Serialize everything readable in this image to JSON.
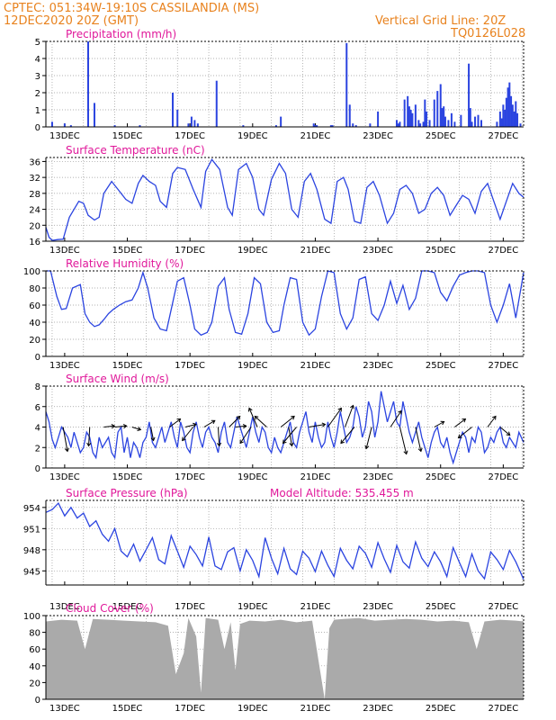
{
  "header": {
    "line1": "CPTEC:   051:34W-19:10S   CASSILANDIA (MS)",
    "line2": "12DEC2020 20Z (GMT)",
    "vgrid": "Vertical Grid Line: 20Z",
    "code": "TQ0126L028"
  },
  "colors": {
    "header": "#e8821e",
    "title": "#e0189a",
    "series": "#2b44e0",
    "cloud": "#aaaaaa",
    "wind": "#000000"
  },
  "chart_data": [
    {
      "type": "bar",
      "title": "Precipitation (mm/h)",
      "xlim": [
        0,
        15.25
      ],
      "ylim": [
        0,
        5
      ],
      "yticks": [
        "0",
        "1",
        "2",
        "3",
        "4",
        "5"
      ],
      "xticks": [
        "13DEC",
        "15DEC",
        "17DEC",
        "19DEC",
        "21DEC",
        "23DEC",
        "25DEC",
        "27DEC"
      ],
      "x": [
        0.2,
        0.6,
        0.8,
        1.35,
        1.55,
        2.2,
        3.0,
        4.05,
        4.2,
        4.55,
        4.65,
        4.75,
        4.85,
        5.45,
        6.3,
        7.35,
        7.5,
        8.55,
        8.6,
        8.65,
        9.1,
        9.15,
        9.6,
        9.7,
        9.8,
        9.9,
        10.35,
        10.6,
        11.2,
        11.25,
        11.3,
        11.45,
        11.55,
        11.6,
        11.65,
        11.7,
        11.8,
        11.9,
        11.95,
        12.05,
        12.1,
        12.15,
        12.25,
        12.4,
        12.5,
        12.6,
        12.65,
        12.7,
        12.75,
        12.85,
        12.95,
        13.05,
        13.25,
        13.5,
        13.55,
        13.6,
        13.7,
        13.8,
        13.9,
        14.4,
        14.5,
        14.55,
        14.6,
        14.65,
        14.7,
        14.75,
        14.8,
        14.85,
        14.9,
        14.95,
        15.0,
        15.05,
        15.15
      ],
      "values": [
        0.3,
        0.2,
        0.1,
        5.0,
        1.4,
        0.1,
        0.1,
        2.0,
        1.0,
        0.2,
        0.6,
        0.4,
        0.2,
        2.7,
        0.1,
        0.1,
        0.6,
        0.2,
        0.1,
        0.1,
        0.1,
        0.1,
        4.9,
        1.3,
        0.2,
        0.1,
        0.2,
        0.9,
        0.4,
        0.2,
        0.3,
        1.6,
        1.8,
        1.2,
        1.0,
        0.8,
        1.3,
        0.4,
        0.2,
        0.3,
        1.6,
        0.9,
        0.4,
        1.6,
        2.1,
        2.5,
        1.1,
        1.2,
        0.6,
        0.4,
        0.8,
        0.3,
        0.7,
        3.7,
        1.1,
        0.3,
        0.6,
        0.7,
        0.4,
        0.3,
        0.9,
        0.5,
        1.3,
        1.0,
        1.7,
        2.3,
        2.6,
        1.8,
        1.3,
        0.9,
        1.5,
        0.8,
        0.2
      ]
    },
    {
      "type": "line",
      "title": "Surface Temperature (nC)",
      "xlim": [
        0,
        15.25
      ],
      "ylim": [
        16,
        37
      ],
      "yticks": [
        "16",
        "20",
        "24",
        "28",
        "32",
        "36"
      ],
      "xticks": [
        "13DEC",
        "15DEC",
        "17DEC",
        "19DEC",
        "21DEC",
        "23DEC",
        "25DEC",
        "27DEC"
      ],
      "x": [
        0.0,
        0.1,
        0.2,
        0.38,
        0.55,
        0.75,
        0.9,
        1.05,
        1.2,
        1.35,
        1.55,
        1.7,
        1.85,
        2.1,
        2.3,
        2.55,
        2.75,
        2.95,
        3.1,
        3.3,
        3.5,
        3.65,
        3.85,
        4.05,
        4.2,
        4.45,
        4.7,
        4.95,
        5.1,
        5.3,
        5.55,
        5.8,
        5.95,
        6.15,
        6.4,
        6.6,
        6.8,
        6.95,
        7.2,
        7.45,
        7.65,
        7.85,
        8.05,
        8.25,
        8.45,
        8.65,
        8.9,
        9.1,
        9.3,
        9.5,
        9.65,
        9.85,
        10.05,
        10.25,
        10.45,
        10.65,
        10.9,
        11.1,
        11.3,
        11.5,
        11.7,
        11.9,
        12.1,
        12.3,
        12.5,
        12.7,
        12.9,
        13.1,
        13.3,
        13.5,
        13.7,
        13.9,
        14.1,
        14.3,
        14.5,
        14.7,
        14.9,
        15.1,
        15.25
      ],
      "values": [
        19.5,
        17.0,
        16.2,
        16.4,
        16.5,
        22.0,
        24.0,
        26.0,
        25.5,
        22.5,
        21.3,
        22.0,
        28.0,
        31.0,
        29.0,
        26.5,
        25.5,
        30.5,
        32.5,
        31.0,
        30.0,
        26.0,
        24.5,
        33.0,
        34.5,
        34.0,
        29.0,
        24.5,
        33.5,
        36.5,
        34.0,
        24.5,
        22.5,
        34.0,
        35.5,
        32.0,
        24.0,
        22.5,
        31.5,
        35.5,
        33.0,
        24.0,
        22.0,
        31.0,
        33.0,
        29.0,
        21.5,
        20.5,
        31.0,
        32.0,
        29.0,
        21.0,
        20.5,
        29.5,
        31.0,
        27.5,
        20.5,
        23.0,
        29.0,
        30.0,
        28.0,
        23.0,
        24.0,
        28.0,
        29.5,
        27.5,
        22.5,
        25.0,
        27.5,
        26.5,
        23.0,
        28.5,
        30.5,
        26.0,
        21.5,
        26.0,
        30.5,
        28.0,
        27.0
      ]
    },
    {
      "type": "line",
      "title": "Relative Humidity (%)",
      "xlim": [
        0,
        15.25
      ],
      "ylim": [
        0,
        100
      ],
      "yticks": [
        "0",
        "20",
        "40",
        "60",
        "80",
        "100"
      ],
      "xticks": [
        "13DEC",
        "15DEC",
        "17DEC",
        "19DEC",
        "21DEC",
        "23DEC",
        "25DEC",
        "27DEC"
      ],
      "x": [
        0.0,
        0.15,
        0.35,
        0.5,
        0.65,
        0.85,
        1.1,
        1.25,
        1.4,
        1.55,
        1.7,
        1.85,
        2.0,
        2.15,
        2.35,
        2.55,
        2.75,
        2.95,
        3.1,
        3.25,
        3.45,
        3.65,
        3.85,
        4.0,
        4.2,
        4.4,
        4.6,
        4.75,
        4.95,
        5.15,
        5.3,
        5.5,
        5.7,
        5.85,
        6.05,
        6.25,
        6.45,
        6.65,
        6.85,
        7.05,
        7.25,
        7.45,
        7.6,
        7.8,
        8.0,
        8.2,
        8.4,
        8.6,
        8.8,
        9.0,
        9.2,
        9.4,
        9.6,
        9.8,
        10.0,
        10.2,
        10.4,
        10.6,
        10.8,
        11.0,
        11.2,
        11.4,
        11.6,
        11.8,
        12.0,
        12.2,
        12.4,
        12.6,
        12.8,
        13.0,
        13.2,
        13.4,
        13.6,
        13.8,
        14.0,
        14.2,
        14.4,
        14.6,
        14.8,
        15.0,
        15.25
      ],
      "values": [
        100,
        100,
        70,
        55,
        56,
        80,
        84,
        50,
        40,
        35,
        37,
        43,
        50,
        55,
        60,
        64,
        66,
        80,
        98,
        80,
        45,
        32,
        30,
        55,
        88,
        92,
        60,
        32,
        25,
        28,
        40,
        82,
        92,
        55,
        28,
        26,
        50,
        92,
        85,
        40,
        28,
        30,
        60,
        92,
        90,
        40,
        25,
        32,
        70,
        100,
        98,
        50,
        32,
        45,
        90,
        93,
        50,
        42,
        60,
        88,
        62,
        83,
        55,
        68,
        100,
        100,
        98,
        75,
        65,
        82,
        95,
        98,
        100,
        100,
        98,
        60,
        40,
        60,
        85,
        45,
        98
      ]
    },
    {
      "type": "line",
      "title": "Surface Wind (m/s)",
      "xlim": [
        0,
        15.25
      ],
      "ylim": [
        0,
        8
      ],
      "yticks": [
        "0",
        "2",
        "4",
        "6",
        "8"
      ],
      "xticks": [
        "13DEC",
        "15DEC",
        "17DEC",
        "19DEC",
        "21DEC",
        "23DEC",
        "25DEC",
        "27DEC"
      ],
      "x": [
        0.0,
        0.1,
        0.2,
        0.3,
        0.4,
        0.5,
        0.6,
        0.7,
        0.8,
        0.9,
        1.0,
        1.1,
        1.2,
        1.3,
        1.4,
        1.5,
        1.6,
        1.7,
        1.8,
        1.9,
        2.0,
        2.1,
        2.2,
        2.3,
        2.4,
        2.5,
        2.6,
        2.7,
        2.8,
        2.9,
        3.0,
        3.1,
        3.2,
        3.3,
        3.4,
        3.5,
        3.6,
        3.7,
        3.8,
        3.9,
        4.0,
        4.1,
        4.2,
        4.3,
        4.4,
        4.5,
        4.6,
        4.7,
        4.8,
        4.9,
        5.0,
        5.1,
        5.2,
        5.3,
        5.4,
        5.5,
        5.6,
        5.7,
        5.8,
        5.9,
        6.0,
        6.1,
        6.2,
        6.3,
        6.4,
        6.5,
        6.6,
        6.7,
        6.8,
        6.9,
        7.0,
        7.1,
        7.2,
        7.3,
        7.4,
        7.5,
        7.6,
        7.7,
        7.8,
        7.9,
        8.0,
        8.1,
        8.2,
        8.3,
        8.4,
        8.5,
        8.6,
        8.7,
        8.8,
        8.9,
        9.0,
        9.1,
        9.2,
        9.3,
        9.4,
        9.5,
        9.6,
        9.7,
        9.8,
        9.9,
        10.0,
        10.1,
        10.2,
        10.3,
        10.4,
        10.5,
        10.6,
        10.7,
        10.8,
        10.9,
        11.0,
        11.1,
        11.2,
        11.3,
        11.4,
        11.5,
        11.6,
        11.7,
        11.8,
        11.9,
        12.0,
        12.1,
        12.2,
        12.3,
        12.4,
        12.5,
        12.6,
        12.7,
        12.8,
        12.9,
        13.0,
        13.1,
        13.2,
        13.3,
        13.4,
        13.5,
        13.6,
        13.7,
        13.8,
        13.9,
        14.0,
        14.1,
        14.2,
        14.3,
        14.4,
        14.5,
        14.6,
        14.7,
        14.8,
        14.9,
        15.0,
        15.1,
        15.25
      ],
      "values": [
        5.5,
        4.5,
        2.8,
        2.0,
        3.0,
        4.0,
        3.5,
        3.0,
        2.0,
        3.5,
        2.5,
        1.5,
        2.0,
        3.5,
        3.0,
        1.5,
        1.0,
        3.0,
        2.0,
        2.5,
        3.0,
        1.5,
        1.0,
        3.5,
        4.0,
        1.5,
        3.0,
        1.0,
        2.5,
        2.0,
        1.0,
        2.5,
        3.0,
        4.5,
        2.5,
        2.0,
        3.0,
        4.0,
        2.5,
        3.5,
        4.5,
        3.0,
        2.0,
        4.5,
        3.5,
        2.0,
        1.5,
        3.5,
        4.5,
        3.0,
        2.0,
        3.5,
        4.0,
        3.0,
        2.5,
        1.5,
        3.5,
        4.5,
        2.5,
        2.0,
        3.5,
        5.0,
        4.0,
        3.0,
        2.0,
        3.5,
        5.0,
        3.5,
        2.5,
        4.0,
        3.5,
        2.0,
        1.5,
        3.0,
        2.0,
        1.5,
        2.5,
        3.5,
        4.5,
        2.5,
        2.0,
        3.5,
        4.5,
        5.5,
        3.5,
        2.5,
        4.5,
        3.0,
        2.0,
        2.5,
        4.5,
        3.0,
        2.0,
        3.5,
        5.5,
        4.0,
        2.5,
        3.0,
        4.0,
        6.0,
        5.0,
        3.0,
        4.0,
        6.5,
        5.5,
        3.0,
        4.5,
        7.5,
        6.0,
        4.5,
        5.5,
        6.5,
        4.5,
        4.0,
        6.5,
        5.0,
        3.5,
        2.5,
        3.5,
        4.5,
        3.0,
        2.0,
        1.0,
        2.5,
        3.5,
        4.0,
        2.5,
        2.0,
        3.0,
        1.5,
        0.5,
        1.5,
        2.5,
        3.5,
        3.0,
        1.5,
        3.0,
        2.5,
        4.0,
        3.5,
        1.5,
        2.0,
        3.0,
        2.5,
        3.5,
        4.0,
        2.5,
        2.0,
        3.0,
        2.5,
        2.0,
        3.5,
        2.5
      ]
    },
    {
      "type": "line",
      "title": "Surface Pressure (hPa)",
      "annotation": "Model Altitude: 535.455 m",
      "xlim": [
        0,
        15.25
      ],
      "ylim": [
        943,
        955
      ],
      "yticks": [
        "945",
        "948",
        "951",
        "954"
      ],
      "xticks": [
        "13DEC",
        "15DEC",
        "17DEC",
        "19DEC",
        "21DEC",
        "23DEC",
        "25DEC",
        "27DEC"
      ],
      "x": [
        0.0,
        0.2,
        0.4,
        0.6,
        0.8,
        1.0,
        1.2,
        1.4,
        1.6,
        1.8,
        2.0,
        2.2,
        2.4,
        2.6,
        2.8,
        3.0,
        3.2,
        3.4,
        3.6,
        3.8,
        4.0,
        4.2,
        4.4,
        4.6,
        4.8,
        5.0,
        5.2,
        5.4,
        5.6,
        5.8,
        6.0,
        6.2,
        6.4,
        6.6,
        6.8,
        7.0,
        7.2,
        7.4,
        7.6,
        7.8,
        8.0,
        8.2,
        8.4,
        8.6,
        8.8,
        9.0,
        9.2,
        9.4,
        9.6,
        9.8,
        10.0,
        10.2,
        10.4,
        10.6,
        10.8,
        11.0,
        11.2,
        11.4,
        11.6,
        11.8,
        12.0,
        12.2,
        12.4,
        12.6,
        12.8,
        13.0,
        13.2,
        13.4,
        13.6,
        13.8,
        14.0,
        14.2,
        14.4,
        14.6,
        14.8,
        15.0,
        15.25
      ],
      "values": [
        953.3,
        953.7,
        954.6,
        952.8,
        954.0,
        952.5,
        953.2,
        951.3,
        952.1,
        950.2,
        949.2,
        951.0,
        947.8,
        947.0,
        948.8,
        946.4,
        948.0,
        949.7,
        946.6,
        946.0,
        950.0,
        947.8,
        945.5,
        948.5,
        947.3,
        945.7,
        949.8,
        945.7,
        945.2,
        947.7,
        948.3,
        945.0,
        948.0,
        946.5,
        944.2,
        949.7,
        946.8,
        944.6,
        948.2,
        945.3,
        944.5,
        947.8,
        946.8,
        944.9,
        947.8,
        945.8,
        944.2,
        948.2,
        946.5,
        945.3,
        948.5,
        947.5,
        945.5,
        949.0,
        946.7,
        944.8,
        948.6,
        946.3,
        945.4,
        949.1,
        946.8,
        945.6,
        947.7,
        946.3,
        944.2,
        948.3,
        946.2,
        944.2,
        947.4,
        945.0,
        943.9,
        947.7,
        946.6,
        945.2,
        947.9,
        946.3,
        943.8
      ]
    },
    {
      "type": "bar",
      "title": "Cloud Cover (%)",
      "xlim": [
        0,
        15.25
      ],
      "ylim": [
        0,
        100
      ],
      "yticks": [
        "0",
        "20",
        "40",
        "60",
        "80",
        "100"
      ],
      "xticks": [
        "13DEC",
        "15DEC",
        "17DEC",
        "19DEC",
        "21DEC",
        "23DEC",
        "25DEC",
        "27DEC"
      ],
      "x": [
        0.0,
        0.5,
        1.0,
        1.25,
        1.5,
        2.0,
        2.5,
        3.0,
        3.5,
        3.9,
        4.15,
        4.4,
        4.55,
        4.8,
        4.95,
        5.1,
        5.5,
        5.7,
        5.9,
        6.05,
        6.2,
        6.5,
        7.0,
        7.5,
        8.0,
        8.5,
        8.75,
        8.9,
        9.05,
        9.2,
        9.5,
        10.0,
        10.5,
        11.0,
        11.5,
        12.0,
        12.5,
        13.0,
        13.5,
        13.75,
        14.0,
        14.5,
        15.0,
        15.25
      ],
      "values": [
        93,
        95,
        94,
        60,
        96,
        95,
        94,
        93,
        92,
        88,
        30,
        55,
        97,
        75,
        8,
        97,
        95,
        60,
        92,
        35,
        90,
        94,
        93,
        95,
        92,
        94,
        35,
        0,
        85,
        95,
        96,
        97,
        94,
        95,
        96,
        95,
        93,
        94,
        92,
        60,
        93,
        95,
        94,
        93
      ]
    }
  ],
  "wind_vectors": {
    "x": [
      0.55,
      1.4,
      1.85,
      2.2,
      2.75,
      3.35,
      3.95,
      4.45,
      4.7,
      5.05,
      5.5,
      5.85,
      6.05,
      6.55,
      6.75,
      7.05,
      7.5,
      7.75,
      8.0,
      8.4,
      9.0,
      9.55,
      9.85,
      10.4,
      11.0,
      11.3,
      11.8,
      12.4,
      13.05,
      13.6,
      14.1,
      14.5
    ],
    "u": [
      0.8,
      -0.2,
      2.0,
      2.2,
      1.6,
      0.5,
      2.0,
      2.0,
      -2.0,
      2.0,
      0.2,
      2.0,
      2.0,
      -2.0,
      -1.5,
      -2.2,
      2.5,
      0.6,
      -2.5,
      3.0,
      2.5,
      1.5,
      -2.5,
      -1.0,
      2.0,
      1.2,
      1.0,
      1.8,
      2.0,
      -2.5,
      1.5,
      1.8
    ],
    "v": [
      -4.5,
      -3.5,
      0.2,
      0.2,
      -0.5,
      -2.5,
      1.5,
      0.5,
      -2.5,
      1.2,
      -3.5,
      2.0,
      0.2,
      -3.0,
      3.5,
      2.0,
      2.0,
      -3.5,
      -3.0,
      0.5,
      3.5,
      4.0,
      -3.0,
      -4.0,
      3.0,
      -5.0,
      -4.5,
      1.0,
      1.5,
      -2.0,
      2.0,
      -1.5
    ]
  }
}
